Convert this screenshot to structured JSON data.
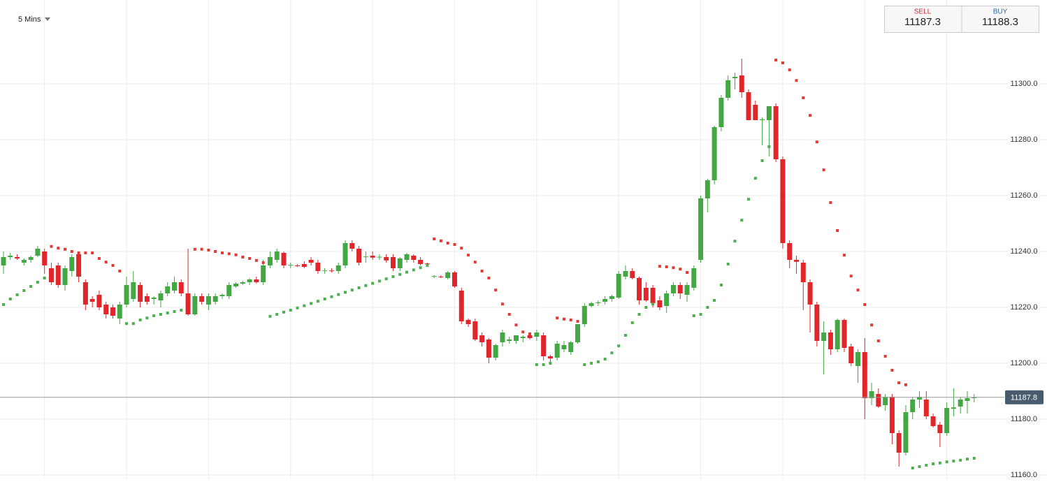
{
  "chart_data": {
    "type": "candlestick",
    "timeframe": "5 Mins",
    "open": [
      11235,
      11238,
      11238,
      11236,
      11237,
      11238.5,
      11240,
      11234,
      11235,
      11228,
      11233,
      11239,
      11229,
      11223,
      11224.5,
      11221,
      11220,
      11216,
      11221,
      11223,
      11228,
      11224,
      11223,
      11222.5,
      11225,
      11226,
      11229,
      11225,
      11217.5,
      11224,
      11221,
      11222,
      11224,
      11224,
      11227.5,
      11228.5,
      11229,
      11230,
      11229,
      11235,
      11237,
      11239.5,
      11235,
      11235,
      11235.5,
      11237,
      11236,
      11233,
      11233.2,
      11233,
      11235,
      11243,
      11241,
      11238,
      11238.5,
      11238,
      11238,
      11238,
      11234,
      11237,
      11238.5,
      11237,
      11235.7,
      11231,
      11231,
      11230.5,
      11232.5,
      11226,
      11215.5,
      11215,
      11210,
      11208.5,
      11202,
      11207.5,
      11208,
      11208,
      11209,
      11210,
      11209.5,
      11210,
      11202.5,
      11202,
      11205,
      11204,
      11207.5,
      11214,
      11220.5,
      11221.5,
      11222,
      11223,
      11223.5,
      11231,
      11233,
      11230.5,
      11227,
      11227,
      11222.5,
      11220.5,
      11225,
      11228,
      11224.5,
      11227,
      11237,
      11259,
      11265.5,
      11284.5,
      11295,
      11302,
      11303,
      11297,
      11292.5,
      11287,
      11287,
      11292,
      11273,
      11243,
      11237,
      11236,
      11229,
      11221,
      11208,
      11211,
      11205,
      11215.5,
      11206,
      11199,
      11204,
      11187.5,
      11189,
      11185,
      11188,
      11175,
      11168,
      11182.5,
      11187,
      11187,
      11181,
      11178,
      11175,
      11183.7,
      11184.5,
      11186.5,
      11187.5
    ],
    "high": [
      11240,
      11239.5,
      11239,
      11237.5,
      11238.5,
      11242,
      11241,
      11236,
      11236,
      11235,
      11239,
      11240,
      11230,
      11224,
      11226,
      11222,
      11221,
      11222,
      11231,
      11233,
      11229,
      11225,
      11224,
      11226,
      11229,
      11231,
      11230,
      11241,
      11225,
      11225,
      11225,
      11225,
      11225,
      11229,
      11229,
      11229.5,
      11230.5,
      11231,
      11237,
      11240,
      11241,
      11240,
      11236,
      11235.5,
      11236.5,
      11238,
      11237,
      11234,
      11234,
      11236,
      11244,
      11244,
      11242,
      11240,
      11240,
      11239,
      11239,
      11239,
      11238,
      11239.5,
      11239,
      11238,
      11236,
      11231.5,
      11231.5,
      11233,
      11233,
      11227,
      11216,
      11216,
      11211,
      11209,
      11207,
      11212,
      11209.5,
      11210,
      11210,
      11211,
      11212,
      11211,
      11203,
      11208,
      11208,
      11208,
      11214,
      11221.5,
      11222,
      11222.5,
      11224,
      11224.5,
      11233,
      11235,
      11234,
      11231,
      11229,
      11228,
      11224,
      11226,
      11229,
      11229,
      11229,
      11235,
      11260,
      11266,
      11285,
      11296,
      11303,
      11304,
      11309,
      11298,
      11294,
      11288,
      11292,
      11293,
      11274,
      11244,
      11238.5,
      11237,
      11230,
      11222,
      11215,
      11212,
      11216,
      11216,
      11207,
      11205,
      11209,
      11193,
      11191,
      11189,
      11189,
      11176,
      11185,
      11188,
      11190,
      11190,
      11182,
      11179,
      11186,
      11191,
      11188,
      11190,
      11189
    ],
    "low": [
      11232,
      11237,
      11237,
      11235,
      11236,
      11238,
      11232,
      11228,
      11227,
      11226,
      11231,
      11229,
      11219,
      11220,
      11219,
      11216,
      11216,
      11214,
      11220,
      11222,
      11220,
      11221,
      11221,
      11220,
      11224,
      11225,
      11224,
      11217,
      11217,
      11221,
      11219,
      11221,
      11223,
      11223,
      11227,
      11228,
      11228,
      11228.5,
      11228,
      11234,
      11236,
      11234,
      11234,
      11234.5,
      11234,
      11235,
      11232,
      11232,
      11232.5,
      11232,
      11234,
      11240,
      11235,
      11236,
      11237,
      11237,
      11236,
      11233,
      11233,
      11236,
      11236,
      11235,
      11235,
      11230.5,
      11230.5,
      11230,
      11227,
      11214,
      11213,
      11208,
      11206,
      11200,
      11201,
      11206,
      11207,
      11207,
      11207.5,
      11208.5,
      11208,
      11201,
      11199.5,
      11201,
      11204,
      11203,
      11207,
      11213,
      11220,
      11220.5,
      11221,
      11222,
      11223,
      11230,
      11230,
      11221,
      11222,
      11220,
      11219,
      11218,
      11224,
      11223,
      11222,
      11226,
      11236,
      11254,
      11264,
      11283,
      11294,
      11298,
      11295,
      11287,
      11287,
      11278,
      11274,
      11272,
      11241,
      11234,
      11232,
      11219,
      11211,
      11206,
      11196,
      11203,
      11204,
      11204,
      11199,
      11193,
      11180,
      11185,
      11184,
      11183,
      11171,
      11163,
      11167,
      11180,
      11184,
      11180,
      11177,
      11170,
      11174,
      11181,
      11182,
      11182,
      11186
    ],
    "close": [
      11238,
      11238.5,
      11237.5,
      11237,
      11238,
      11241,
      11235,
      11229,
      11228,
      11234,
      11238,
      11231,
      11221,
      11222,
      11220,
      11217.5,
      11217,
      11221,
      11228,
      11229,
      11222,
      11222,
      11223.5,
      11225,
      11227.5,
      11229,
      11225,
      11217.5,
      11224,
      11222,
      11224,
      11224,
      11224.5,
      11228,
      11228.5,
      11229,
      11230,
      11229,
      11235,
      11238,
      11240,
      11235,
      11235.2,
      11234.8,
      11234.5,
      11236,
      11233,
      11233.2,
      11233,
      11235,
      11243,
      11241,
      11236,
      11238.2,
      11237.8,
      11238.1,
      11236.8,
      11234,
      11237.5,
      11239,
      11237,
      11235.5,
      11235.5,
      11231.2,
      11230.8,
      11232.5,
      11227.5,
      11215,
      11214,
      11208.5,
      11207.5,
      11202,
      11206.5,
      11211,
      11208.5,
      11210,
      11209.5,
      11209,
      11211,
      11202.5,
      11201.7,
      11207,
      11206.5,
      11207.5,
      11214,
      11220.5,
      11221.5,
      11221.8,
      11223,
      11224,
      11232,
      11233,
      11230.5,
      11222.5,
      11222.5,
      11221.5,
      11220,
      11225,
      11228,
      11225,
      11228,
      11234,
      11259,
      11265.5,
      11284.5,
      11295,
      11301.3,
      11302.5,
      11297,
      11287,
      11287,
      11287.3,
      11292,
      11273,
      11243,
      11237,
      11236.3,
      11229,
      11221,
      11208,
      11211,
      11205,
      11215.5,
      11205.5,
      11200,
      11204,
      11187.5,
      11190,
      11184.5,
      11188,
      11175,
      11168,
      11182.5,
      11187,
      11188,
      11181,
      11177.5,
      11175,
      11184,
      11184.2,
      11187,
      11187.5,
      11187.8
    ],
    "up_color": "#43a743",
    "down_color": "#e0262b",
    "sar": [
      {
        "color": "#4caf50",
        "values": [
          11221,
          11223,
          11224.5,
          11226,
          11227.5,
          11229,
          11230.5,
          null,
          null,
          null,
          null,
          null,
          null,
          null,
          null,
          null,
          null,
          null,
          11214.2,
          11214.2,
          11215.5,
          11216.2,
          11217,
          11217.5,
          11218,
          11218.5,
          11219,
          null,
          null,
          null,
          null,
          null,
          null,
          null,
          null,
          null,
          null,
          null,
          null,
          11216.8,
          11217.5,
          11218.3,
          11219,
          11219.8,
          11220.6,
          11221.4,
          11222.2,
          11223,
          11223.8,
          11224.6,
          11225.4,
          11226.2,
          11227,
          11227.8,
          11228.6,
          11229.4,
          11230.2,
          11231,
          11231.8,
          11232.6,
          11233.4,
          11234.2,
          11235,
          null,
          null,
          null,
          null,
          null,
          null,
          null,
          null,
          null,
          null,
          null,
          null,
          null,
          null,
          null,
          11199.5,
          11199.5,
          11200,
          null,
          null,
          null,
          null,
          11199.5,
          11200,
          11200.5,
          11201.5,
          11203.7,
          11206.2,
          11210,
          11214.5,
          11217.5,
          11220,
          11221.2,
          null,
          null,
          null,
          null,
          null,
          11217,
          11217.5,
          11220,
          11222.5,
          11228,
          11235.5,
          11243.7,
          11251.2,
          11258.7,
          11266.2,
          11272.5,
          11277.5,
          null,
          null,
          null,
          null,
          null,
          null,
          null,
          null,
          null,
          null,
          null,
          null,
          null,
          null,
          null,
          null,
          null,
          null,
          null,
          null,
          11162.5,
          11163,
          11163.5,
          11164,
          11164.3,
          11164.7,
          11165,
          11165.3,
          11165.7,
          11166
        ]
      },
      {
        "color": "#e53935",
        "values": [
          null,
          null,
          null,
          null,
          null,
          null,
          null,
          11241.8,
          11241.2,
          11240.8,
          11240,
          11239.5,
          11239.5,
          11239.5,
          11237.5,
          11236.2,
          11235,
          11233,
          null,
          null,
          null,
          null,
          null,
          null,
          null,
          null,
          null,
          null,
          11240.8,
          11240.8,
          11240.5,
          11240,
          11239.5,
          11239.2,
          11238.8,
          11238,
          11237.5,
          11236.8,
          11236,
          null,
          null,
          null,
          null,
          null,
          null,
          null,
          null,
          null,
          null,
          null,
          null,
          null,
          null,
          null,
          null,
          null,
          null,
          null,
          null,
          null,
          null,
          null,
          null,
          11244.5,
          11243.8,
          11243,
          11242.5,
          11241.2,
          11238.7,
          11236.2,
          11233,
          11230.5,
          11226.2,
          11221.2,
          11217.5,
          11213.7,
          11211.2,
          11210.5,
          null,
          null,
          null,
          11216.2,
          11215.8,
          11215.5,
          11215,
          null,
          null,
          null,
          null,
          null,
          null,
          null,
          null,
          null,
          null,
          null,
          11234.7,
          11234.5,
          11234.2,
          11233.7,
          11232.5,
          null,
          null,
          null,
          null,
          null,
          null,
          null,
          null,
          null,
          null,
          null,
          null,
          11308.5,
          11307.5,
          11305,
          11301.2,
          11295,
          11288.7,
          11279.2,
          11269.2,
          11257.5,
          11247.5,
          11238.7,
          11231.2,
          11226.2,
          11221,
          11213.7,
          11208,
          11202.5,
          11197.5,
          11193,
          11192.3,
          null,
          null,
          null,
          null,
          null,
          null,
          null,
          null,
          null,
          null
        ]
      }
    ],
    "ylim": [
      11158.75,
      11330
    ],
    "yticks": [
      {
        "value": 11160,
        "label": "11160.0"
      },
      {
        "value": 11180,
        "label": "11180.0"
      },
      {
        "value": 11200,
        "label": "11200.0"
      },
      {
        "value": 11220,
        "label": "11220.0"
      },
      {
        "value": 11240,
        "label": "11240.0"
      },
      {
        "value": 11260,
        "label": "11260.0"
      },
      {
        "value": 11280,
        "label": "11280.0"
      },
      {
        "value": 11300,
        "label": "11300.0"
      }
    ],
    "grid": true,
    "last_price": 11187.8
  },
  "quote": {
    "sell_label": "SELL",
    "sell": 11187.3,
    "buy_label": "BUY",
    "buy": 11188.3
  }
}
